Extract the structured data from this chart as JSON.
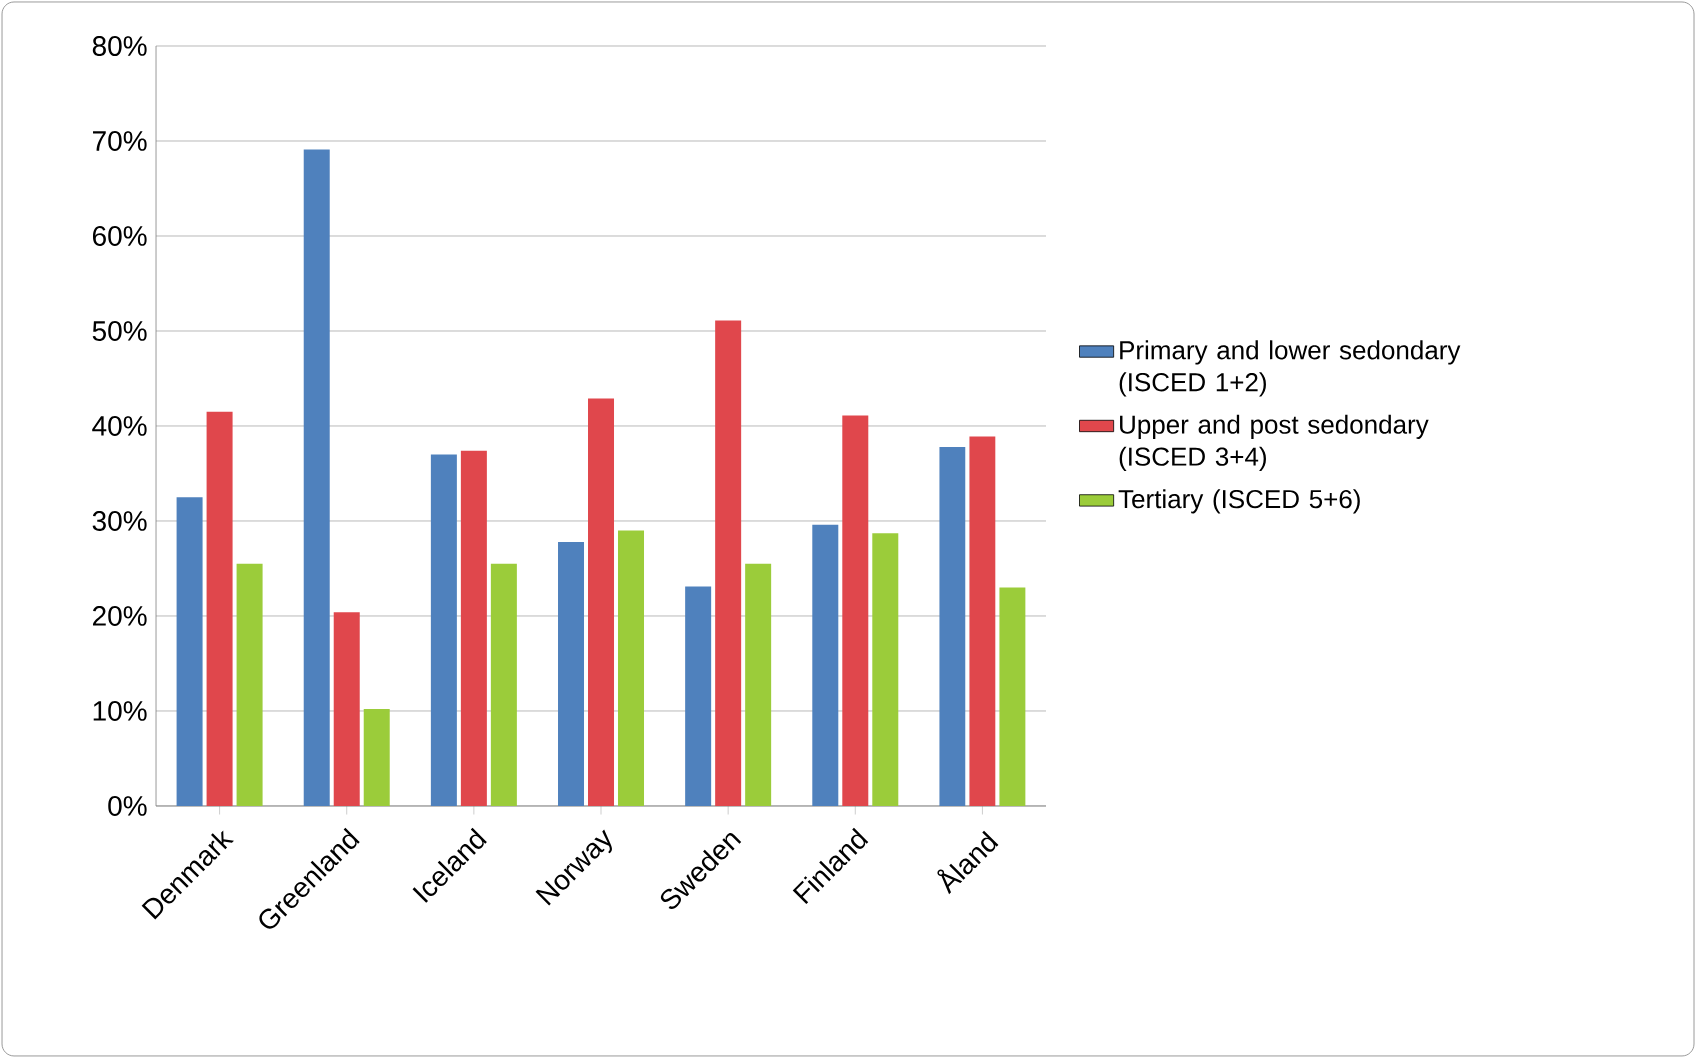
{
  "chart_data": {
    "type": "bar",
    "categories": [
      "Denmark",
      "Greenland",
      "Iceland",
      "Norway",
      "Sweden",
      "Finland",
      "Åland"
    ],
    "series": [
      {
        "name": "Primary and lower sedondary (ISCED 1+2)",
        "color": "#4f81bd",
        "values": [
          32.5,
          69.1,
          37,
          27.8,
          23.1,
          29.6,
          37.8
        ]
      },
      {
        "name": "Upper and post sedondary (ISCED 3+4)",
        "color": "#e0474c",
        "values": [
          41.5,
          20.4,
          37.4,
          42.9,
          51.1,
          41.1,
          38.9
        ]
      },
      {
        "name": "Tertiary (ISCED 5+6)",
        "color": "#9bcc3a",
        "values": [
          25.5,
          10.2,
          25.5,
          29,
          25.5,
          28.7,
          23
        ]
      }
    ],
    "ylim": [
      0,
      80
    ],
    "yticks": [
      {
        "value": 0,
        "label": "0%"
      },
      {
        "value": 10,
        "label": "10%"
      },
      {
        "value": 20,
        "label": "20%"
      },
      {
        "value": 30,
        "label": "30%"
      },
      {
        "value": 40,
        "label": "40%"
      },
      {
        "value": 50,
        "label": "50%"
      },
      {
        "value": 60,
        "label": "60%"
      },
      {
        "value": 70,
        "label": "70%"
      },
      {
        "value": 80,
        "label": "80%"
      }
    ],
    "grid": "y",
    "legend": "right"
  }
}
